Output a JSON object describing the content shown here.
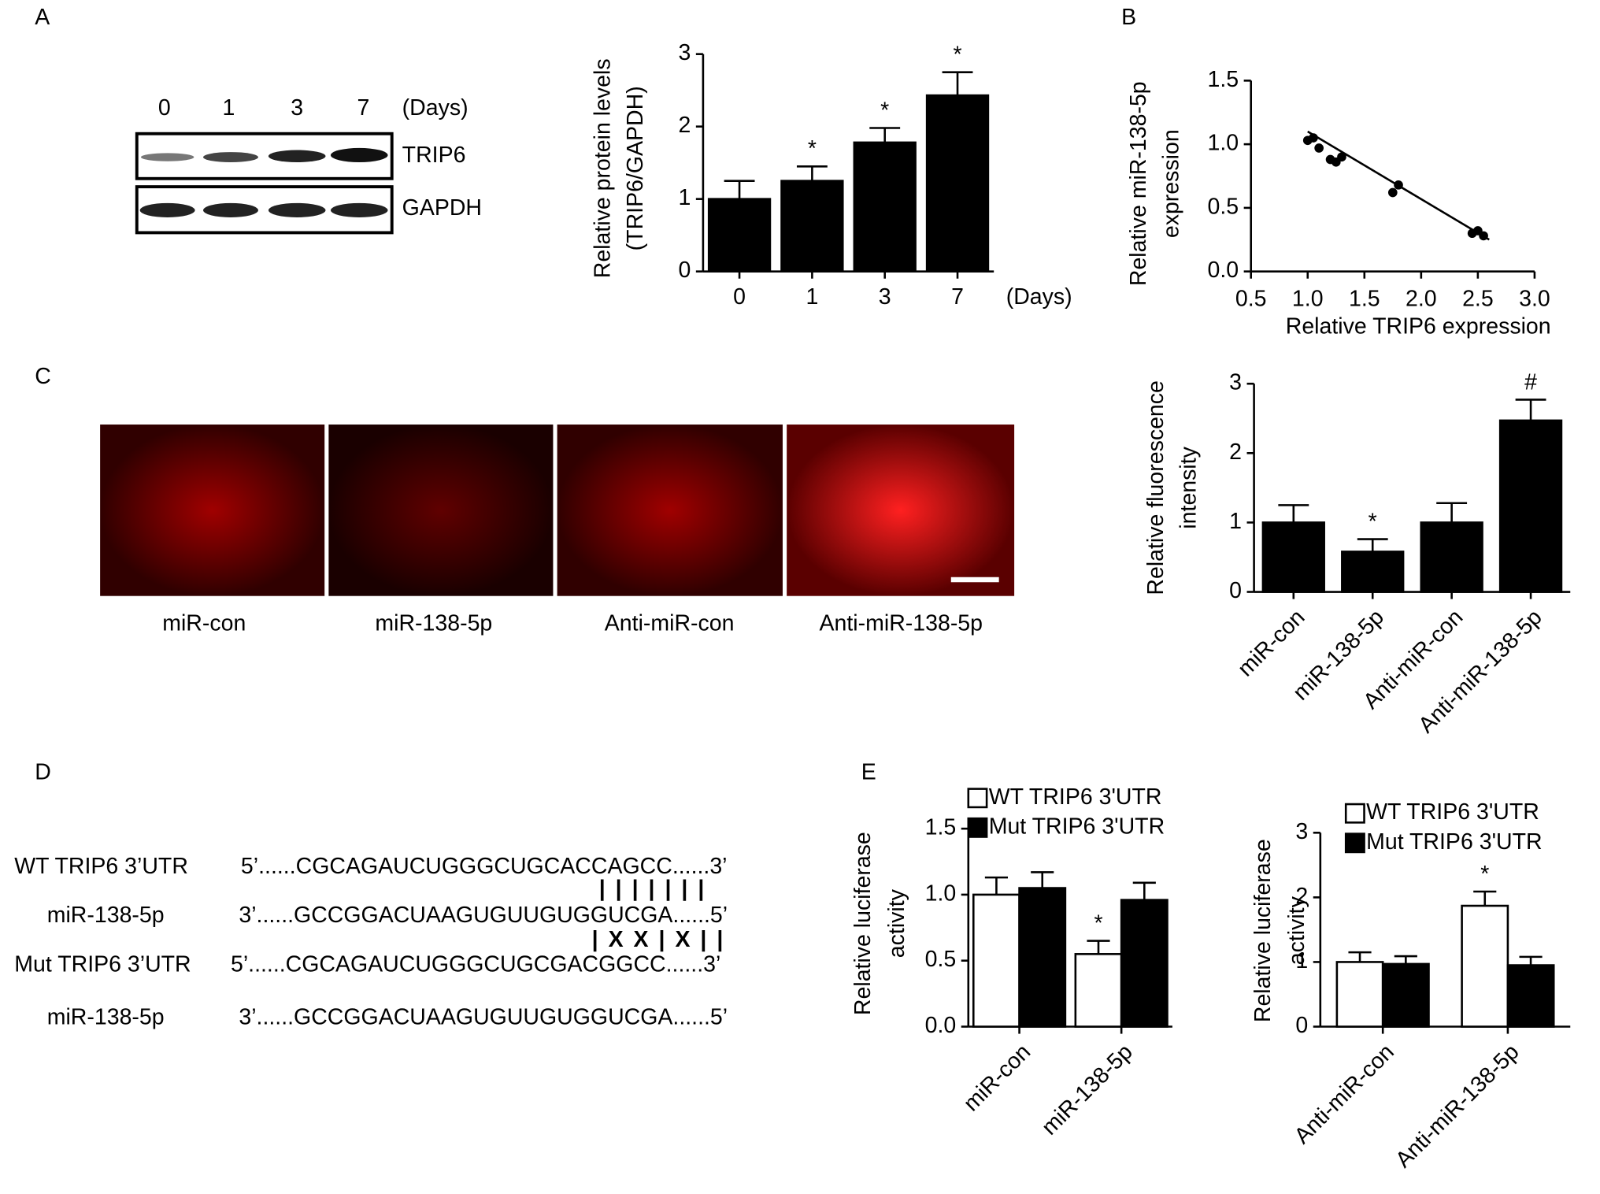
{
  "panel_labels": [
    "A",
    "B",
    "C",
    "D",
    "E"
  ],
  "blot": {
    "lanes": [
      "0",
      "1",
      "3",
      "7"
    ],
    "unit": "(Days)",
    "rows": [
      "TRIP6",
      "GAPDH"
    ]
  },
  "micrographs": [
    "miR-con",
    "miR-138-5p",
    "Anti-miR-con",
    "Anti-miR-138-5p"
  ],
  "sequences": [
    {
      "name": "WT TRIP6 3’UTR",
      "seq": "5’......CGCAGAUCUGGGCUGCACCAGCC......3’"
    },
    {
      "name": "miR-138-5p",
      "seq": "3’......GCCGGACUAAGUGUUGUGGUCGA......5’"
    },
    {
      "name": "Mut TRIP6 3’UTR",
      "seq": "5’......CGCAGAUCUGGGCUGCGACGGCC......3’"
    },
    {
      "name": "miR-138-5p",
      "seq": "3’......GCCGGACUAAGUGUUGUGGUCGA......5’"
    }
  ],
  "pairing": [
    "|||||||",
    "|XX|X||"
  ],
  "chart_data": [
    {
      "type": "bar",
      "ylabel": [
        "Relative protein levels",
        "(TRIP6/GAPDH)"
      ],
      "xlabel": "(Days)",
      "categories": [
        "0",
        "1",
        "3",
        "7"
      ],
      "series": [
        {
          "color": "#000000",
          "values": [
            1,
            1.25,
            1.78,
            2.43
          ],
          "errors": [
            0.25,
            0.2,
            0.2,
            0.32
          ],
          "significance": [
            null,
            "*",
            "*",
            "*"
          ]
        }
      ],
      "ylim": [
        0,
        3
      ],
      "yticks": [
        0,
        1,
        2,
        3
      ]
    },
    {
      "type": "scatter",
      "ylabel": [
        "Relative miR-138-5p",
        "expression"
      ],
      "xlabel": "Relative TRIP6 expression",
      "x": [
        1.0,
        1.05,
        1.1,
        1.2,
        1.25,
        1.3,
        1.75,
        1.8,
        2.45,
        2.5,
        2.55
      ],
      "y": [
        1.03,
        1.05,
        0.97,
        0.88,
        0.86,
        0.9,
        0.62,
        0.68,
        0.3,
        0.32,
        0.28
      ],
      "fit": {
        "x": [
          1.0,
          2.6
        ],
        "y": [
          1.1,
          0.25
        ]
      },
      "color": "#000000",
      "xlim": [
        0.5,
        3.0
      ],
      "xticks": [
        0.5,
        {
          "value": 1,
          "label": "1.0"
        },
        1.5,
        {
          "value": 2,
          "label": "2.0"
        },
        2.5,
        {
          "value": 3,
          "label": "3.0"
        }
      ],
      "ylim": [
        0,
        1.5
      ],
      "yticks": [
        {
          "value": 0,
          "label": "0.0"
        },
        0.5,
        {
          "value": 1,
          "label": "1.0"
        },
        1.5
      ]
    },
    {
      "type": "bar",
      "ylabel": [
        "Relative fluorescence",
        "intensity"
      ],
      "categories": [
        "miR-con",
        "miR-138-5p",
        "Anti-miR-con",
        "Anti-miR-138-5p"
      ],
      "series": [
        {
          "color": "#000000",
          "values": [
            1,
            0.58,
            1,
            2.47
          ],
          "errors": [
            0.25,
            0.18,
            0.28,
            0.3
          ],
          "significance": [
            null,
            "*",
            null,
            "#"
          ]
        }
      ],
      "ylim": [
        0,
        3
      ],
      "yticks": [
        0,
        1,
        2,
        3
      ]
    },
    {
      "type": "bar",
      "ylabel": [
        "Relative luciferase",
        "activity"
      ],
      "categories": [
        "miR-con",
        "miR-138-5p"
      ],
      "series": [
        {
          "name": "WT TRIP6 3'UTR",
          "color": "#ffffff",
          "values": [
            1.0,
            0.55
          ],
          "errors": [
            0.13,
            0.1
          ],
          "significance": [
            null,
            "*"
          ]
        },
        {
          "name": "Mut TRIP6 3'UTR",
          "color": "#000000",
          "values": [
            1.05,
            0.96
          ],
          "errors": [
            0.12,
            0.13
          ]
        }
      ],
      "ylim": [
        0,
        1.5
      ],
      "yticks": [
        {
          "value": 0,
          "label": "0.0"
        },
        0.5,
        {
          "value": 1,
          "label": "1.0"
        },
        1.5
      ]
    },
    {
      "type": "bar",
      "ylabel": [
        "Relative luciferase",
        "activity"
      ],
      "categories": [
        "Anti-miR-con",
        "Anti-miR-138-5p"
      ],
      "series": [
        {
          "name": "WT TRIP6 3'UTR",
          "color": "#ffffff",
          "values": [
            1.0,
            1.87
          ],
          "errors": [
            0.15,
            0.22
          ],
          "significance": [
            null,
            "*"
          ]
        },
        {
          "name": "Mut TRIP6 3'UTR",
          "color": "#000000",
          "values": [
            0.97,
            0.95
          ],
          "errors": [
            0.12,
            0.13
          ]
        }
      ],
      "ylim": [
        0,
        3
      ],
      "yticks": [
        0,
        1,
        2,
        3
      ]
    }
  ]
}
